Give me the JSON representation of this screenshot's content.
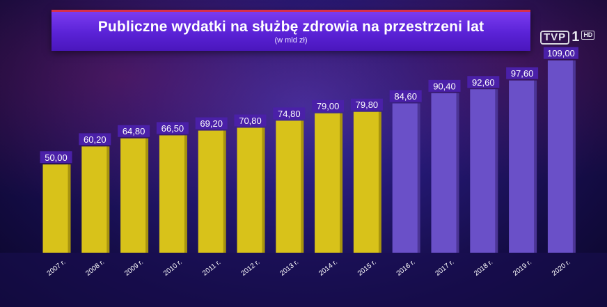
{
  "header": {
    "title": "Publiczne wydatki na służbę zdrowia na przestrzeni lat",
    "subtitle": "(w mld zł)"
  },
  "logo": {
    "channel": "TVP",
    "number": "1",
    "badge": "HD"
  },
  "colors": {
    "highlight_bar": "#d8c21a",
    "other_bar": "#6a50c8",
    "label_bg": "#4a20a8",
    "label_text": "#ffffff"
  },
  "chart_data": {
    "type": "bar",
    "title": "Publiczne wydatki na służbę zdrowia na przestrzeni lat",
    "subtitle": "(w mld zł)",
    "categories": [
      "2007 r.",
      "2008 r.",
      "2009 r.",
      "2010 r.",
      "2011 r.",
      "2012 r.",
      "2013 r.",
      "2014 r.",
      "2015 r.",
      "2016 r.",
      "2017 r.",
      "2018 r.",
      "2019 r.",
      "2020 r."
    ],
    "values": [
      50.0,
      60.2,
      64.8,
      66.5,
      69.2,
      70.8,
      74.8,
      79.0,
      79.8,
      84.6,
      90.4,
      92.6,
      97.6,
      109.0
    ],
    "value_labels": [
      "50,00",
      "60,20",
      "64,80",
      "66,50",
      "69,20",
      "70,80",
      "74,80",
      "79,00",
      "79,80",
      "84,60",
      "90,40",
      "92,60",
      "97,60",
      "109,00"
    ],
    "highlight_through_index": 8,
    "xlabel": "",
    "ylabel": "",
    "ylim": [
      0,
      110
    ],
    "grid": false,
    "legend": "none"
  }
}
